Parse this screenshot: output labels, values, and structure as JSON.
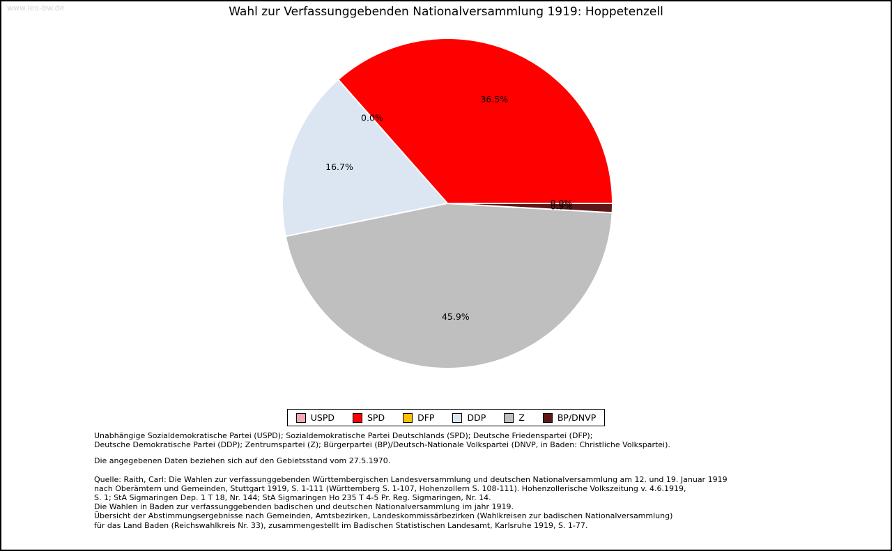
{
  "watermark": "www.leo-bw.de",
  "title": "Wahl zur Verfassunggebenden Nationalversammlung 1919: Hoppetenzell",
  "chart_data": {
    "type": "pie",
    "title": "Wahl zur Verfassunggebenden Nationalversammlung 1919: Hoppetenzell",
    "start_angle_deg": 0,
    "direction": "counterclockwise",
    "legend_position": "bottom-center",
    "percent_labels_inside": true,
    "slices": [
      {
        "label": "USPD",
        "value": 0.0,
        "percent_label": "0.0%",
        "color": "#f2a9b4"
      },
      {
        "label": "SPD",
        "value": 36.5,
        "percent_label": "36.5%",
        "color": "#fe0000"
      },
      {
        "label": "DFP",
        "value": 0.0,
        "percent_label": "0.0%",
        "color": "#ffc000"
      },
      {
        "label": "DDP",
        "value": 16.7,
        "percent_label": "16.7%",
        "color": "#dce6f2"
      },
      {
        "label": "Z",
        "value": 45.9,
        "percent_label": "45.9%",
        "color": "#bfbfbf"
      },
      {
        "label": "BP/DNVP",
        "value": 0.9,
        "percent_label": "0.9%",
        "color": "#5e1718"
      }
    ]
  },
  "footnotes": {
    "party_abbreviations": [
      "Unabhängige Sozialdemokratische Partei (USPD); Sozialdemokratische Partei Deutschlands (SPD); Deutsche Friedenspartei (DFP);",
      "Deutsche Demokratische Partei (DDP); Zentrumspartei (Z); Bürgerpartei (BP)/Deutsch-Nationale Volkspartei (DNVP, in Baden: Christliche Volkspartei)."
    ],
    "data_note": "Die angegebenen Daten beziehen sich auf den Gebietsstand vom 27.5.1970.",
    "source_lines": [
      "Quelle: Raith, Carl: Die Wahlen zur verfassunggebenden Württembergischen Landesversammlung und deutschen Nationalversammlung am 12. und 19. Januar 1919",
      "nach Oberämtern und Gemeinden, Stuttgart 1919, S. 1-111 (Württemberg S. 1-107, Hohenzollern S. 108-111). Hohenzollerische Volkszeitung v. 4.6.1919,",
      "S. 1; StA Sigmaringen Dep. 1 T 18, Nr. 144; StA Sigmaringen Ho 235 T 4-5 Pr. Reg. Sigmaringen, Nr. 14.",
      "Die Wahlen in Baden zur verfassunggebenden badischen und deutschen Nationalversammlung im jahr 1919.",
      "Übersicht der Abstimmungsergebnisse nach Gemeinden, Amtsbezirken, Landeskommissärbezirken (Wahlkreisen zur badischen Nationalversammlung)",
      "für das Land Baden (Reichswahlkreis Nr. 33), zusammengestellt im Badischen Statistischen Landesamt, Karlsruhe 1919, S. 1-77."
    ]
  }
}
